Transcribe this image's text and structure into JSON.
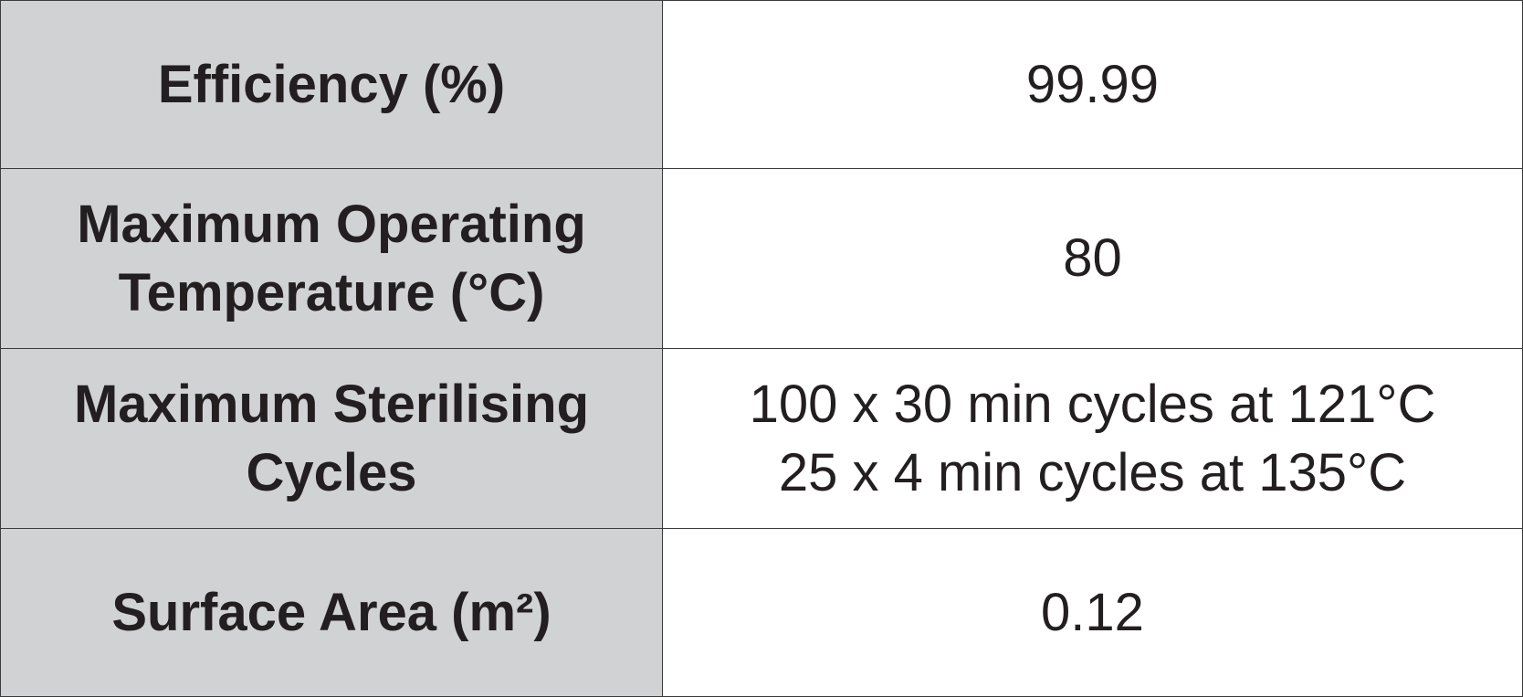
{
  "table": {
    "rows": [
      [
        "Efficiency (%)",
        [
          "99.99"
        ]
      ],
      [
        "Maximum Operating Temperature (°C)",
        [
          "80"
        ]
      ],
      [
        "Maximum Sterilising Cycles",
        [
          "100 x 30 min cycles at 121°C",
          "25 x 4 min cycles at 135°C"
        ]
      ],
      [
        "Surface Area (m²)",
        [
          "0.12"
        ]
      ]
    ]
  }
}
